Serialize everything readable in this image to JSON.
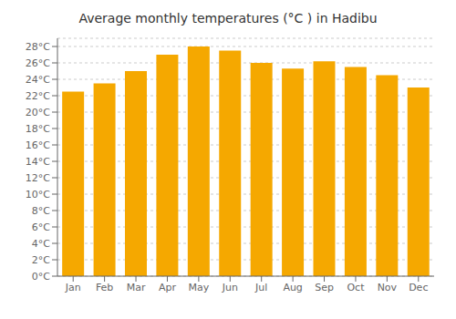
{
  "chart_data": {
    "type": "bar",
    "title": "Average monthly temperatures (°C ) in Hadibu",
    "categories": [
      "Jan",
      "Feb",
      "Mar",
      "Apr",
      "May",
      "Jun",
      "Jul",
      "Aug",
      "Sep",
      "Oct",
      "Nov",
      "Dec"
    ],
    "values": [
      22.5,
      23.5,
      25.0,
      27.0,
      28.0,
      27.5,
      26.0,
      25.3,
      26.2,
      25.5,
      24.5,
      23.0
    ],
    "color": "#F5A800",
    "ylim": [
      0,
      29
    ],
    "yticks": [
      {
        "value": 0,
        "label": "0°C"
      },
      {
        "value": 2,
        "label": "2°C"
      },
      {
        "value": 4,
        "label": "4°C"
      },
      {
        "value": 6,
        "label": "6°C"
      },
      {
        "value": 8,
        "label": "8°C"
      },
      {
        "value": 10,
        "label": "10°C"
      },
      {
        "value": 12,
        "label": "12°C"
      },
      {
        "value": 14,
        "label": "14°C"
      },
      {
        "value": 16,
        "label": "16°C"
      },
      {
        "value": 18,
        "label": "18°C"
      },
      {
        "value": 20,
        "label": "20°C"
      },
      {
        "value": 22,
        "label": "22°C"
      },
      {
        "value": 24,
        "label": "24°C"
      },
      {
        "value": 26,
        "label": "26°C"
      },
      {
        "value": 28,
        "label": "28°C"
      }
    ],
    "grid": true
  }
}
